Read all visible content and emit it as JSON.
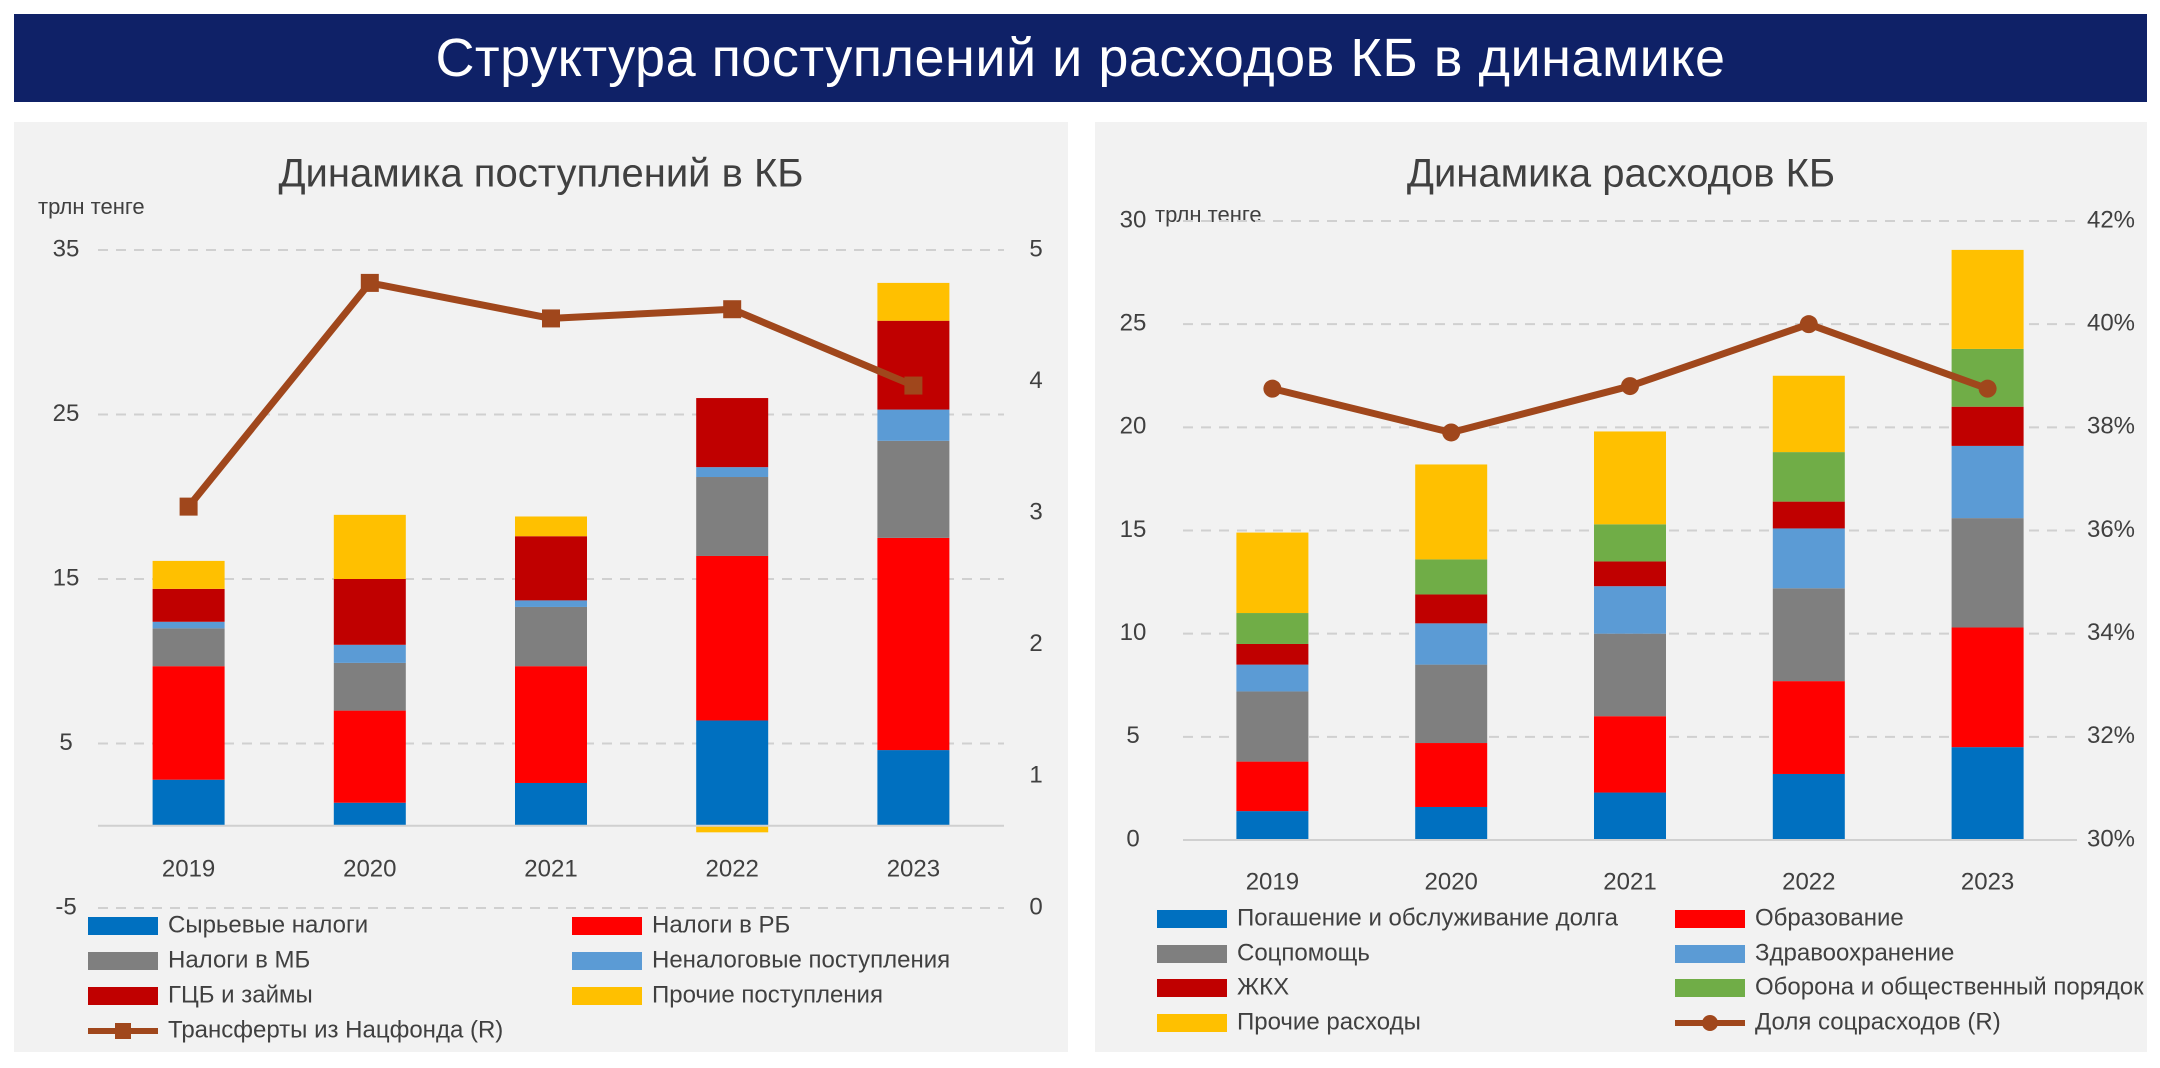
{
  "page_title": "Структура поступлений и расходов КБ в динамике",
  "chart_data": [
    {
      "type": "bar",
      "stacked": true,
      "title": "Динамика поступлений в КБ",
      "ylabel": "трлн тенге",
      "categories": [
        "2019",
        "2020",
        "2021",
        "2022",
        "2023"
      ],
      "ylim": [
        -5,
        35
      ],
      "yticks": [
        "-5",
        "5",
        "15",
        "25",
        "35"
      ],
      "y2lim": [
        0,
        5
      ],
      "y2ticks": [
        "0",
        "1",
        "2",
        "3",
        "4",
        "5"
      ],
      "grid": true,
      "legend_position": "bottom",
      "series": [
        {
          "name": "Сырьевые налоги",
          "color": "#0070c0",
          "values": [
            2.8,
            1.4,
            2.6,
            6.4,
            4.6
          ]
        },
        {
          "name": "Налоги в РБ",
          "color": "#ff0000",
          "values": [
            6.9,
            5.6,
            7.1,
            10.0,
            12.9
          ]
        },
        {
          "name": "Налоги в МБ",
          "color": "#7f7f7f",
          "values": [
            2.3,
            2.9,
            3.6,
            4.8,
            5.9
          ]
        },
        {
          "name": "Неналоговые поступления",
          "color": "#5b9bd5",
          "values": [
            0.4,
            1.1,
            0.4,
            0.6,
            1.9
          ]
        },
        {
          "name": "ГЦБ и займы",
          "color": "#c00000",
          "values": [
            2.0,
            4.0,
            3.9,
            4.2,
            5.4
          ]
        },
        {
          "name": "Прочие поступления",
          "color": "#ffc000",
          "values": [
            1.7,
            3.9,
            1.2,
            -0.4,
            2.3
          ]
        }
      ],
      "line_series": {
        "name": "Трансферты из Нацфонда (R)",
        "color": "#a0471c",
        "axis": "right",
        "marker": "square",
        "values": [
          3.05,
          4.75,
          4.48,
          4.55,
          3.97
        ]
      }
    },
    {
      "type": "bar",
      "stacked": true,
      "title": "Динамика расходов КБ",
      "ylabel": "трлн тенге",
      "categories": [
        "2019",
        "2020",
        "2021",
        "2022",
        "2023"
      ],
      "ylim": [
        0,
        30
      ],
      "yticks": [
        "0",
        "5",
        "10",
        "15",
        "20",
        "25",
        "30"
      ],
      "y2lim": [
        30,
        42
      ],
      "y2ticks": [
        "30%",
        "32%",
        "34%",
        "36%",
        "38%",
        "40%",
        "42%"
      ],
      "grid": true,
      "legend_position": "bottom",
      "series": [
        {
          "name": "Погашение и обслуживание долга",
          "color": "#0070c0",
          "values": [
            1.4,
            1.6,
            2.3,
            3.2,
            4.5
          ]
        },
        {
          "name": "Образование",
          "color": "#ff0000",
          "values": [
            2.4,
            3.1,
            3.7,
            4.5,
            5.8
          ]
        },
        {
          "name": "Соцпомощь",
          "color": "#7f7f7f",
          "values": [
            3.4,
            3.8,
            4.0,
            4.5,
            5.3
          ]
        },
        {
          "name": "Здравоохранение",
          "color": "#5b9bd5",
          "values": [
            1.3,
            2.0,
            2.3,
            2.9,
            3.5
          ]
        },
        {
          "name": "ЖКХ",
          "color": "#c00000",
          "values": [
            1.0,
            1.4,
            1.2,
            1.3,
            1.9
          ]
        },
        {
          "name": "Оборона и общественный порядок",
          "color": "#70ad47",
          "values": [
            1.5,
            1.7,
            1.8,
            2.4,
            2.8
          ]
        },
        {
          "name": "Прочие расходы",
          "color": "#ffc000",
          "values": [
            3.9,
            4.6,
            4.5,
            3.7,
            4.8
          ]
        }
      ],
      "line_series": {
        "name": "Доля соцрасходов (R)",
        "color": "#a0471c",
        "axis": "right",
        "marker": "circle",
        "values": [
          38.75,
          37.9,
          38.8,
          40.0,
          38.75
        ]
      }
    }
  ]
}
